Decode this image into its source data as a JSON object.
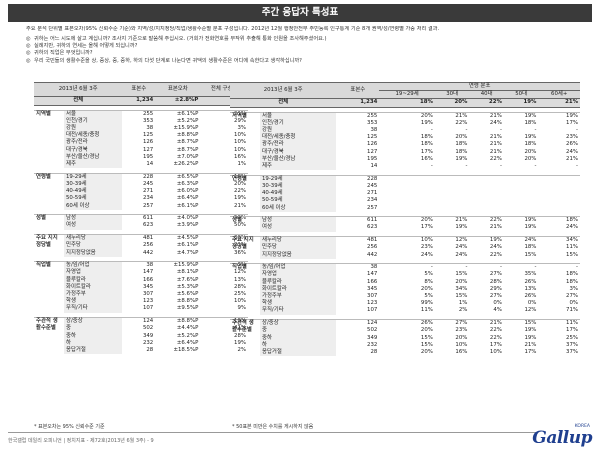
{
  "title": "주간 응답자 특성표",
  "note": "주요 분석 단위별 표본오차(95% 신뢰수준 기준)와 지역/성/지지정당/직업/생활수준별 분포 구성입니다. 2012년 12월 행정안전부 주민등록 인구통계 기준 8개 권역/성/연령별 가중 처리 결과.",
  "questions": [
    {
      "mark": "◎",
      "text": "귀하는 어느 시도에 살고 계십니까? 조사지 기준으로 말씀해 주십시오. (거회가 전화연호를 무작위 추출해 통화 인원을 조사해주셨어요.)"
    },
    {
      "mark": "◎",
      "text": "실례지만, 귀하의 연세는 올해 어떻게 되십니까?"
    },
    {
      "mark": "◎",
      "text": "귀하의 직업은 무엇입니까?"
    },
    {
      "mark": "◎",
      "text": "우리 국민들의 생활수준을 상, 중상, 중, 중하, 하의 다섯 단계로 나눈다면 귀댁의 생활수준은 어디에 속한다고 생각하십니까?"
    }
  ],
  "left_table": {
    "header_label": "2013년 6월 3주",
    "col_n": "표본수",
    "col_err": "표본오차",
    "col_pct": "전체 구성비",
    "total": {
      "label": "전체",
      "n": "1,234",
      "err": "±2.8%P",
      "pct": "100%"
    },
    "groups": [
      {
        "cat": "지역별",
        "rows": [
          {
            "label": "서울",
            "n": "255",
            "err": "±6.1%P",
            "pct": "21%"
          },
          {
            "label": "인천/경기",
            "n": "353",
            "err": "±5.2%P",
            "pct": "29%"
          },
          {
            "label": "강원",
            "n": "38",
            "err": "±15.9%P",
            "pct": "3%"
          },
          {
            "label": "대전/세종/충청",
            "n": "125",
            "err": "±8.8%P",
            "pct": "10%"
          },
          {
            "label": "광주/전라",
            "n": "126",
            "err": "±8.7%P",
            "pct": "10%"
          },
          {
            "label": "대구/경북",
            "n": "127",
            "err": "±8.7%P",
            "pct": "10%"
          },
          {
            "label": "부산/울산/경남",
            "n": "195",
            "err": "±7.0%P",
            "pct": "16%"
          },
          {
            "label": "제주",
            "n": "14",
            "err": "±26.2%P",
            "pct": "1%"
          }
        ]
      },
      {
        "cat": "연령별",
        "rows": [
          {
            "label": "19-29세",
            "n": "228",
            "err": "±6.5%P",
            "pct": "18%"
          },
          {
            "label": "30-39세",
            "n": "245",
            "err": "±6.3%P",
            "pct": "20%"
          },
          {
            "label": "40-49세",
            "n": "271",
            "err": "±6.0%P",
            "pct": "22%"
          },
          {
            "label": "50-59세",
            "n": "234",
            "err": "±6.4%P",
            "pct": "19%"
          },
          {
            "label": "60세 이상",
            "n": "257",
            "err": "±6.1%P",
            "pct": "21%"
          }
        ]
      },
      {
        "cat": "성별",
        "rows": [
          {
            "label": "남성",
            "n": "611",
            "err": "±4.0%P",
            "pct": "50%"
          },
          {
            "label": "여성",
            "n": "623",
            "err": "±3.9%P",
            "pct": "50%"
          }
        ]
      },
      {
        "cat": "주요 지지 정당별",
        "rows": [
          {
            "label": "새누리당",
            "n": "481",
            "err": "±4.5%P",
            "pct": "39%"
          },
          {
            "label": "민주당",
            "n": "256",
            "err": "±6.1%P",
            "pct": "21%"
          },
          {
            "label": "지지정당없음",
            "n": "442",
            "err": "±4.7%P",
            "pct": "36%"
          }
        ]
      },
      {
        "cat": "직업별",
        "rows": [
          {
            "label": "농/임/어업",
            "n": "38",
            "err": "±15.9%P",
            "pct": "3%"
          },
          {
            "label": "자영업",
            "n": "147",
            "err": "±8.1%P",
            "pct": "12%"
          },
          {
            "label": "블루칼라",
            "n": "166",
            "err": "±7.6%P",
            "pct": "13%"
          },
          {
            "label": "화이트칼라",
            "n": "345",
            "err": "±5.3%P",
            "pct": "28%"
          },
          {
            "label": "가정주부",
            "n": "307",
            "err": "±5.6%P",
            "pct": "25%"
          },
          {
            "label": "학생",
            "n": "123",
            "err": "±8.8%P",
            "pct": "10%"
          },
          {
            "label": "무직/기타",
            "n": "107",
            "err": "±9.5%P",
            "pct": "9%"
          }
        ]
      },
      {
        "cat": "주관적 생활수준별",
        "rows": [
          {
            "label": "상/중상",
            "n": "124",
            "err": "±8.8%P",
            "pct": "10%"
          },
          {
            "label": "중",
            "n": "502",
            "err": "±4.4%P",
            "pct": "41%"
          },
          {
            "label": "중하",
            "n": "349",
            "err": "±5.2%P",
            "pct": "28%"
          },
          {
            "label": "하",
            "n": "232",
            "err": "±6.4%P",
            "pct": "19%"
          },
          {
            "label": "응답거절",
            "n": "28",
            "err": "±18.5%P",
            "pct": "2%"
          }
        ]
      }
    ],
    "footnote": "* 표본오차는 95% 신뢰수준 기준"
  },
  "right_table": {
    "header_label": "2013년 6월 3주",
    "col_n": "표본수",
    "group_header": "연령 분포",
    "age_cols": [
      "19~29세",
      "30대",
      "40대",
      "50대",
      "60세+"
    ],
    "total": {
      "label": "전체",
      "n": "1,234",
      "v": [
        "18%",
        "20%",
        "22%",
        "19%",
        "21%"
      ]
    },
    "groups": [
      {
        "cat": "지역별",
        "rows": [
          {
            "label": "서울",
            "n": "255",
            "v": [
              "20%",
              "21%",
              "21%",
              "19%",
              "19%"
            ]
          },
          {
            "label": "인천/경기",
            "n": "353",
            "v": [
              "19%",
              "22%",
              "24%",
              "18%",
              "17%"
            ]
          },
          {
            "label": "강원",
            "n": "38",
            "v": [
              "-",
              "-",
              "-",
              "-",
              "-"
            ]
          },
          {
            "label": "대전/세종/충청",
            "n": "125",
            "v": [
              "18%",
              "20%",
              "21%",
              "19%",
              "23%"
            ]
          },
          {
            "label": "광주/전라",
            "n": "126",
            "v": [
              "18%",
              "18%",
              "21%",
              "18%",
              "26%"
            ]
          },
          {
            "label": "대구/경북",
            "n": "127",
            "v": [
              "17%",
              "18%",
              "21%",
              "20%",
              "24%"
            ]
          },
          {
            "label": "부산/울산/경남",
            "n": "195",
            "v": [
              "16%",
              "19%",
              "22%",
              "20%",
              "21%"
            ]
          },
          {
            "label": "제주",
            "n": "14",
            "v": [
              "-",
              "-",
              "-",
              "-",
              "-"
            ]
          }
        ]
      },
      {
        "cat": "연령별",
        "rows": [
          {
            "label": "19-29세",
            "n": "228",
            "v": [
              "",
              "",
              "",
              "",
              ""
            ]
          },
          {
            "label": "30-39세",
            "n": "245",
            "v": [
              "",
              "",
              "",
              "",
              ""
            ]
          },
          {
            "label": "40-49세",
            "n": "271",
            "v": [
              "",
              "",
              "",
              "",
              ""
            ]
          },
          {
            "label": "50-59세",
            "n": "234",
            "v": [
              "",
              "",
              "",
              "",
              ""
            ]
          },
          {
            "label": "60세 이상",
            "n": "257",
            "v": [
              "",
              "",
              "",
              "",
              ""
            ]
          }
        ]
      },
      {
        "cat": "성별",
        "rows": [
          {
            "label": "남성",
            "n": "611",
            "v": [
              "20%",
              "21%",
              "22%",
              "19%",
              "18%"
            ]
          },
          {
            "label": "여성",
            "n": "623",
            "v": [
              "17%",
              "19%",
              "21%",
              "19%",
              "24%"
            ]
          }
        ]
      },
      {
        "cat": "주요 지지 정당별",
        "rows": [
          {
            "label": "새누리당",
            "n": "481",
            "v": [
              "10%",
              "12%",
              "19%",
              "24%",
              "34%"
            ]
          },
          {
            "label": "민주당",
            "n": "256",
            "v": [
              "23%",
              "24%",
              "24%",
              "18%",
              "11%"
            ]
          },
          {
            "label": "지지정당없음",
            "n": "442",
            "v": [
              "24%",
              "24%",
              "22%",
              "15%",
              "15%"
            ]
          }
        ]
      },
      {
        "cat": "직업별",
        "rows": [
          {
            "label": "농/임/어업",
            "n": "38",
            "v": [
              "-",
              "-",
              "-",
              "-",
              "-"
            ]
          },
          {
            "label": "자영업",
            "n": "147",
            "v": [
              "5%",
              "15%",
              "27%",
              "35%",
              "18%"
            ]
          },
          {
            "label": "블루칼라",
            "n": "166",
            "v": [
              "8%",
              "20%",
              "28%",
              "26%",
              "18%"
            ]
          },
          {
            "label": "화이트칼라",
            "n": "345",
            "v": [
              "20%",
              "34%",
              "29%",
              "13%",
              "3%"
            ]
          },
          {
            "label": "가정주부",
            "n": "307",
            "v": [
              "5%",
              "15%",
              "27%",
              "26%",
              "27%"
            ]
          },
          {
            "label": "학생",
            "n": "123",
            "v": [
              "99%",
              "1%",
              "0%",
              "0%",
              "0%"
            ]
          },
          {
            "label": "무직/기타",
            "n": "107",
            "v": [
              "11%",
              "2%",
              "4%",
              "12%",
              "71%"
            ]
          }
        ]
      },
      {
        "cat": "주관적 생활수준별",
        "rows": [
          {
            "label": "상/중상",
            "n": "124",
            "v": [
              "26%",
              "27%",
              "21%",
              "15%",
              "11%"
            ]
          },
          {
            "label": "중",
            "n": "502",
            "v": [
              "20%",
              "23%",
              "22%",
              "19%",
              "17%"
            ]
          },
          {
            "label": "중하",
            "n": "349",
            "v": [
              "15%",
              "20%",
              "22%",
              "19%",
              "25%"
            ]
          },
          {
            "label": "하",
            "n": "232",
            "v": [
              "15%",
              "10%",
              "17%",
              "21%",
              "37%"
            ]
          },
          {
            "label": "응답거절",
            "n": "28",
            "v": [
              "20%",
              "16%",
              "10%",
              "17%",
              "37%"
            ]
          }
        ]
      }
    ],
    "footnote": "* 50표본 미만은 수치를 게시하지 않음"
  },
  "footer": "한국갤럽 데일리 오피니언 | 정치지표 - 제72호(2013년 6월 3주) - 9",
  "logo": "Gallup",
  "logo_sup": "KOREA"
}
